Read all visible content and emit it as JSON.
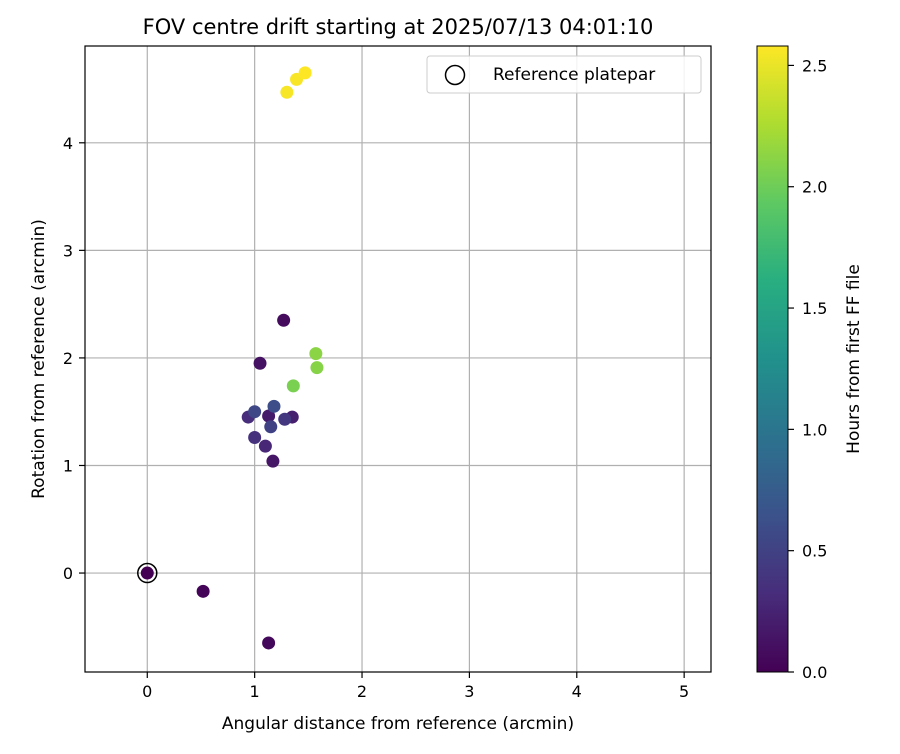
{
  "chart_data": {
    "type": "scatter",
    "title": "FOV centre drift starting at 2025/07/13 04:01:10",
    "xlabel": "Angular distance from reference (arcmin)",
    "ylabel": "Rotation from reference (arcmin)",
    "xlim": [
      -0.58,
      5.25
    ],
    "ylim": [
      -0.92,
      4.9
    ],
    "xticks": [
      "0",
      "1",
      "2",
      "3",
      "4",
      "5"
    ],
    "yticks": [
      "0",
      "1",
      "2",
      "3",
      "4"
    ],
    "grid": true,
    "legend": {
      "position": "top-right",
      "label": "Reference platepar"
    },
    "colorbar": {
      "label": "Hours from first FF file",
      "range": [
        0,
        2.58
      ],
      "colormap": "viridis",
      "ticks": [
        "0.0",
        "0.5",
        "1.0",
        "1.5",
        "2.0",
        "2.5"
      ]
    },
    "reference_point": {
      "x": 0,
      "y": 0
    },
    "points": [
      {
        "x": 0.0,
        "y": 0.0,
        "hours": 0.0
      },
      {
        "x": 0.52,
        "y": -0.17,
        "hours": 0.03
      },
      {
        "x": 1.13,
        "y": -0.65,
        "hours": 0.05
      },
      {
        "x": 1.27,
        "y": 2.35,
        "hours": 0.08
      },
      {
        "x": 1.05,
        "y": 1.95,
        "hours": 0.12
      },
      {
        "x": 1.17,
        "y": 1.04,
        "hours": 0.15
      },
      {
        "x": 1.13,
        "y": 1.46,
        "hours": 0.18
      },
      {
        "x": 1.35,
        "y": 1.45,
        "hours": 0.22
      },
      {
        "x": 1.1,
        "y": 1.18,
        "hours": 0.28
      },
      {
        "x": 0.94,
        "y": 1.45,
        "hours": 0.32
      },
      {
        "x": 1.0,
        "y": 1.26,
        "hours": 0.36
      },
      {
        "x": 1.28,
        "y": 1.43,
        "hours": 0.42
      },
      {
        "x": 1.15,
        "y": 1.36,
        "hours": 0.5
      },
      {
        "x": 1.0,
        "y": 1.5,
        "hours": 0.55
      },
      {
        "x": 1.18,
        "y": 1.55,
        "hours": 0.6
      },
      {
        "x": 1.36,
        "y": 1.74,
        "hours": 2.05
      },
      {
        "x": 1.58,
        "y": 1.91,
        "hours": 2.1
      },
      {
        "x": 1.57,
        "y": 2.04,
        "hours": 2.12
      },
      {
        "x": 1.3,
        "y": 4.47,
        "hours": 2.55
      },
      {
        "x": 1.39,
        "y": 4.59,
        "hours": 2.56
      },
      {
        "x": 1.47,
        "y": 4.65,
        "hours": 2.58
      }
    ]
  }
}
